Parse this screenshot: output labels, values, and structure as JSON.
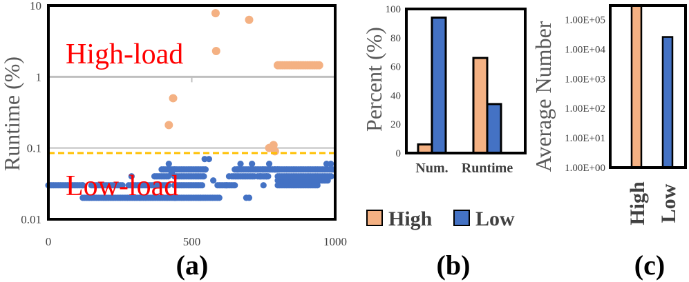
{
  "colors": {
    "high": "#F4B183",
    "low": "#4472C4",
    "threshold": "#FFC000",
    "frame": "#000000",
    "grid": "#BFBFBF",
    "region_text": "#FF0000"
  },
  "legend": {
    "high": "High",
    "low": "Low"
  },
  "chart_data": [
    {
      "id": "a",
      "panel_label": "(a)",
      "type": "scatter",
      "ylabel": "Runtime (%)",
      "xlabel": "",
      "x_ticks": [
        "0",
        "500",
        "1000"
      ],
      "y_ticks": [
        "0.01",
        "0.1",
        "1",
        "10"
      ],
      "xlim": [
        0,
        1000
      ],
      "ylim": [
        0.01,
        10
      ],
      "yscale": "log",
      "threshold_line": 0.085,
      "region_labels": {
        "upper": "High-load",
        "lower": "Low-load"
      },
      "series": [
        {
          "name": "High",
          "points": [
            [
              583,
              7.8
            ],
            [
              700,
              6.3
            ],
            [
              585,
              2.3
            ],
            [
              435,
              0.5
            ],
            [
              420,
              0.21
            ],
            [
              770,
              0.1
            ],
            [
              785,
              0.11
            ],
            [
              790,
              0.09
            ]
          ],
          "clusters": [
            {
              "x_range": [
                800,
                945
              ],
              "y": 1.45,
              "step": 8
            }
          ]
        },
        {
          "name": "Low",
          "segments": [
            {
              "x_range": [
                0,
                120
              ],
              "y": 0.03
            },
            {
              "x_range": [
                120,
                320
              ],
              "y": 0.02
            },
            {
              "x_range": [
                150,
                260
              ],
              "y": 0.03
            },
            {
              "x_range": [
                280,
                420
              ],
              "y": 0.03
            },
            {
              "x_range": [
                320,
                440
              ],
              "y": 0.02
            },
            {
              "x_range": [
                370,
                420
              ],
              "y": 0.04
            },
            {
              "x_range": [
                395,
                440
              ],
              "y": 0.05
            },
            {
              "x_range": [
                440,
                530
              ],
              "y": 0.02
            },
            {
              "x_range": [
                440,
                540
              ],
              "y": 0.03
            },
            {
              "x_range": [
                440,
                545
              ],
              "y": 0.04
            },
            {
              "x_range": [
                440,
                550
              ],
              "y": 0.05
            },
            {
              "x_range": [
                530,
                600
              ],
              "y": 0.02
            },
            {
              "x_range": [
                590,
                650
              ],
              "y": 0.03
            },
            {
              "x_range": [
                640,
                720
              ],
              "y": 0.04
            },
            {
              "x_range": [
                650,
                800
              ],
              "y": 0.05
            },
            {
              "x_range": [
                730,
                770
              ],
              "y": 0.04
            },
            {
              "x_range": [
                800,
                940
              ],
              "y": 0.03
            },
            {
              "x_range": [
                800,
                975
              ],
              "y": 0.035
            },
            {
              "x_range": [
                800,
                990
              ],
              "y": 0.04
            },
            {
              "x_range": [
                800,
                995
              ],
              "y": 0.05
            }
          ],
          "points": [
            [
              120,
              0.03
            ],
            [
              290,
              0.04
            ],
            [
              420,
              0.06
            ],
            [
              430,
              0.045
            ],
            [
              545,
              0.07
            ],
            [
              560,
              0.07
            ],
            [
              575,
              0.035
            ],
            [
              620,
              0.03
            ],
            [
              630,
              0.04
            ],
            [
              660,
              0.05
            ],
            [
              670,
              0.06
            ],
            [
              690,
              0.02
            ],
            [
              700,
              0.02
            ],
            [
              710,
              0.06
            ],
            [
              740,
              0.04
            ],
            [
              750,
              0.03
            ],
            [
              760,
              0.04
            ],
            [
              770,
              0.06
            ],
            [
              790,
              0.05
            ],
            [
              970,
              0.06
            ],
            [
              985,
              0.06
            ]
          ],
          "step": 6
        }
      ]
    },
    {
      "id": "b",
      "panel_label": "(b)",
      "type": "bar",
      "ylabel": "Percent (%)",
      "categories": [
        "Num.",
        "Runtime"
      ],
      "series": [
        {
          "name": "High",
          "values": [
            6,
            66
          ]
        },
        {
          "name": "Low",
          "values": [
            94,
            34
          ]
        }
      ],
      "y_ticks": [
        "0",
        "20",
        "40",
        "60",
        "80",
        "100"
      ],
      "ylim": [
        0,
        100
      ]
    },
    {
      "id": "c",
      "panel_label": "(c)",
      "type": "bar",
      "ylabel": "Average Number",
      "yscale": "log",
      "categories": [
        "High",
        "Low"
      ],
      "values": [
        300000,
        26000
      ],
      "y_ticks": [
        "1.00E+00",
        "1.00E+01",
        "1.00E+02",
        "1.00E+03",
        "1.00E+04",
        "1.00E+05"
      ],
      "ylim": [
        1,
        300000
      ]
    }
  ]
}
